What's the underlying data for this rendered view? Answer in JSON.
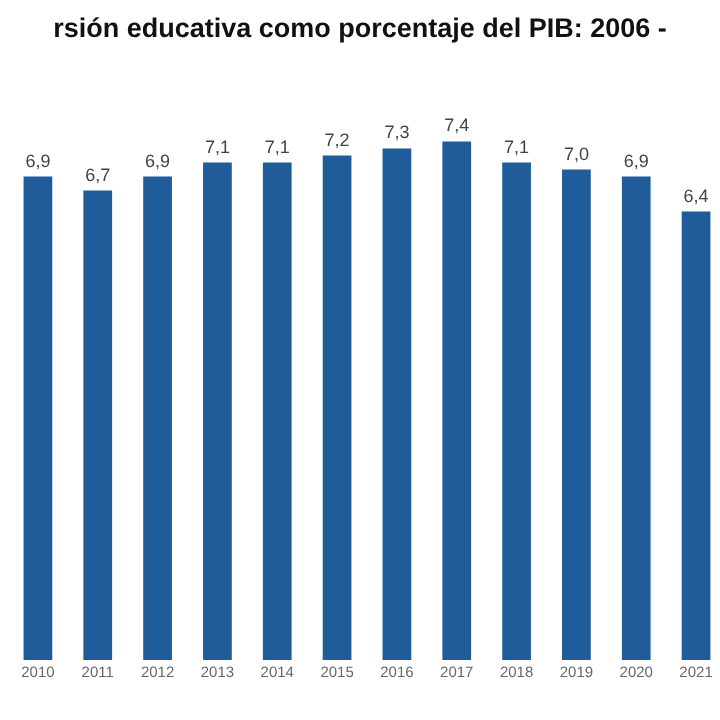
{
  "chart_data": {
    "type": "bar",
    "title": "rsión educativa como porcentaje del PIB: 2006 -",
    "categories": [
      "2010",
      "2011",
      "2012",
      "2013",
      "2014",
      "2015",
      "2016",
      "2017",
      "2018",
      "2019",
      "2020",
      "2021"
    ],
    "values": [
      6.9,
      6.7,
      6.9,
      7.1,
      7.1,
      7.2,
      7.3,
      7.4,
      7.1,
      7.0,
      6.9,
      6.4
    ],
    "value_labels": [
      "6,9",
      "6,7",
      "6,9",
      "7,1",
      "7,1",
      "7,2",
      "7,3",
      "7,4",
      "7,1",
      "7,0",
      "6,9",
      "6,4"
    ],
    "color": "#1f5c99"
  }
}
